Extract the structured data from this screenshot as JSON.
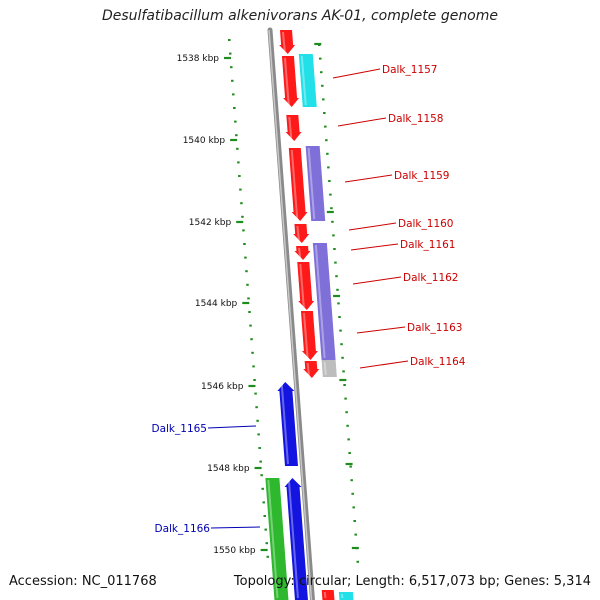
{
  "title": "Desulfatibacillum alkenivorans AK-01, complete genome",
  "footer": {
    "accession": "Accession: NC_011768",
    "stats": "Topology: circular; Length: 6,517,073 bp; Genes: 5,314"
  },
  "colors": {
    "backbone": "#8a8a8a",
    "ruler_tick": "#1e8c1e",
    "gene_red": "#ff1a1a",
    "gene_cyan": "#22e0e8",
    "gene_purple": "#7f6fd8",
    "gene_gray": "#bdbdbd",
    "gene_blue": "#1414e0",
    "gene_green": "#2eb82e",
    "label_red": "#cc0000",
    "label_blue": "#0000b4"
  },
  "scale_labels": [
    "1538 kbp",
    "1540 kbp",
    "1542 kbp",
    "1544 kbp",
    "1546 kbp",
    "1548 kbp",
    "1550 kbp"
  ],
  "gene_labels": [
    {
      "text": "Dalk_1157",
      "color": "red"
    },
    {
      "text": "Dalk_1158",
      "color": "red"
    },
    {
      "text": "Dalk_1159",
      "color": "red"
    },
    {
      "text": "Dalk_1160",
      "color": "red"
    },
    {
      "text": "Dalk_1161",
      "color": "red"
    },
    {
      "text": "Dalk_1162",
      "color": "red"
    },
    {
      "text": "Dalk_1163",
      "color": "red"
    },
    {
      "text": "Dalk_1164",
      "color": "red"
    },
    {
      "text": "Dalk_1165",
      "color": "blue"
    },
    {
      "text": "Dalk_1166",
      "color": "blue"
    }
  ]
}
